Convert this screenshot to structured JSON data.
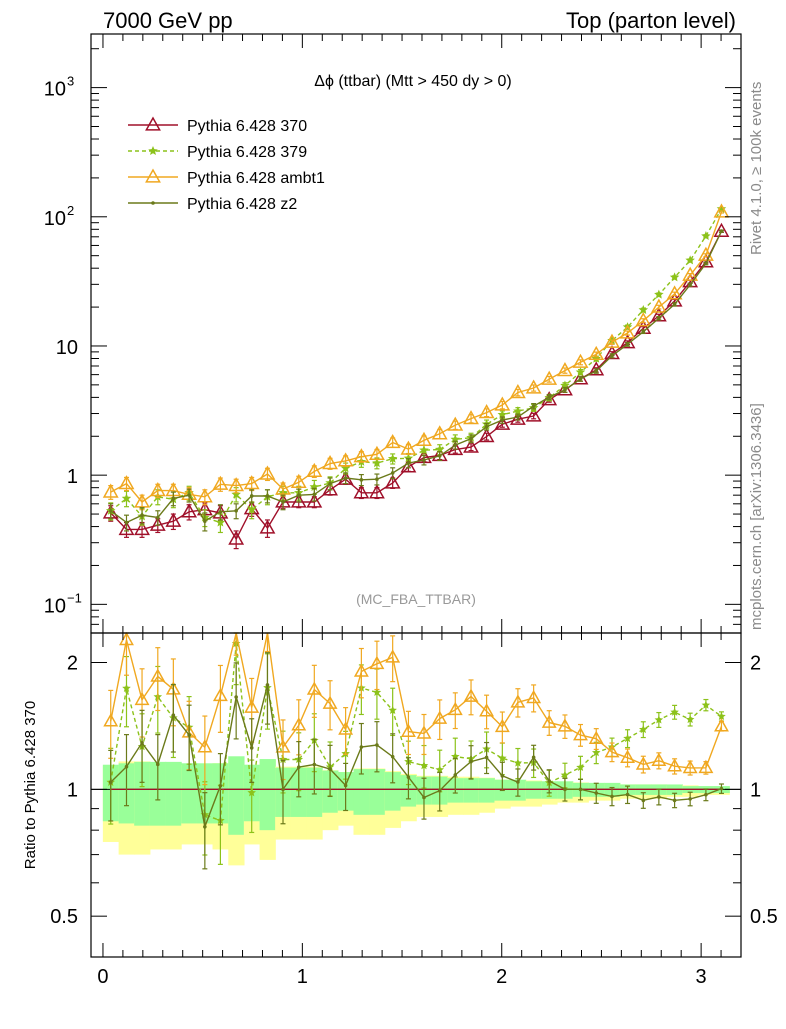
{
  "header": {
    "left_title": "7000 GeV pp",
    "right_title": "Top (parton level)"
  },
  "side_labels": {
    "rivet": "Rivet 4.1.0, ≥ 100k events",
    "mcplots": "mcplots.cern.ch [arXiv:1306.3436]"
  },
  "chart_data": {
    "type": "line",
    "title": "Δϕ (ttbar) (Mtt > 450 dy > 0)",
    "watermark": "(MC_FBA_TTBAR)",
    "xlabel": "",
    "ylabel_main": "",
    "ylabel_ratio": "Ratio to Pythia 6.428 370",
    "xlim": [
      -0.06,
      3.2
    ],
    "ylim_main": [
      0.06,
      2600
    ],
    "yscale_main": "log",
    "ylim_ratio": [
      0.4,
      2.35
    ],
    "yscale_ratio": "log",
    "x_ticks": [
      {
        "v": 0,
        "label": "0"
      },
      {
        "v": 1,
        "label": "1"
      },
      {
        "v": 2,
        "label": "2"
      },
      {
        "v": 3,
        "label": "3"
      }
    ],
    "y_ticks_main": [
      {
        "v": 0.1,
        "base": "10",
        "exp": "−1"
      },
      {
        "v": 1,
        "base": "1",
        "exp": ""
      },
      {
        "v": 10,
        "base": "10",
        "exp": ""
      },
      {
        "v": 100,
        "base": "10",
        "exp": "2"
      },
      {
        "v": 1000,
        "base": "10",
        "exp": "3"
      }
    ],
    "y_ticks_ratio": [
      {
        "v": 0.5,
        "label": "0.5"
      },
      {
        "v": 1,
        "label": "1"
      },
      {
        "v": 2,
        "label": "2"
      }
    ],
    "legend_position": "top-left",
    "x": [
      0.039,
      0.118,
      0.196,
      0.275,
      0.353,
      0.432,
      0.511,
      0.589,
      0.668,
      0.746,
      0.825,
      0.903,
      0.982,
      1.06,
      1.139,
      1.217,
      1.296,
      1.374,
      1.453,
      1.532,
      1.61,
      1.689,
      1.767,
      1.846,
      1.924,
      2.003,
      2.081,
      2.16,
      2.238,
      2.317,
      2.395,
      2.474,
      2.553,
      2.631,
      2.71,
      2.788,
      2.867,
      2.945,
      3.024,
      3.102
    ],
    "series": [
      {
        "name": "Pythia 6.428 370",
        "color": "#a0102a",
        "marker": "triangle-open",
        "dash": "solid",
        "values": [
          0.51,
          0.38,
          0.38,
          0.41,
          0.44,
          0.52,
          0.54,
          0.51,
          0.32,
          0.55,
          0.39,
          0.62,
          0.62,
          0.62,
          0.77,
          0.93,
          0.73,
          0.73,
          0.87,
          1.16,
          1.37,
          1.42,
          1.58,
          1.65,
          1.99,
          2.48,
          2.71,
          2.87,
          3.84,
          4.57,
          5.56,
          6.53,
          8.73,
          10.6,
          13.7,
          17.1,
          22.3,
          31.4,
          44.8,
          77.2
        ],
        "errors": [
          0.07,
          0.05,
          0.05,
          0.05,
          0.06,
          0.07,
          0.07,
          0.07,
          0.05,
          0.07,
          0.06,
          0.07,
          0.06,
          0.06,
          0.07,
          0.08,
          0.07,
          0.07,
          0.08,
          0.09,
          0.1,
          0.1,
          0.1,
          0.1,
          0.12,
          0.13,
          0.14,
          0.14,
          0.17,
          0.2,
          0.22,
          0.25,
          0.3,
          0.35,
          0.4,
          0.5,
          0.6,
          0.8,
          1.0,
          1.4
        ]
      },
      {
        "name": "Pythia 6.428 379",
        "color": "#8cc21a",
        "marker": "star",
        "dash": "dashed",
        "values": [
          0.53,
          0.66,
          0.48,
          0.68,
          0.65,
          0.73,
          0.47,
          0.43,
          0.71,
          0.54,
          0.68,
          0.73,
          0.73,
          0.81,
          0.87,
          1.13,
          1.27,
          1.24,
          1.34,
          1.35,
          1.56,
          1.58,
          1.89,
          1.95,
          2.48,
          2.94,
          3.13,
          3.32,
          3.98,
          4.94,
          6.27,
          7.98,
          11.0,
          14.0,
          19.0,
          25.0,
          34.0,
          46.0,
          71.0,
          115.0
        ],
        "errors": [
          0.08,
          0.09,
          0.07,
          0.09,
          0.09,
          0.09,
          0.07,
          0.07,
          0.09,
          0.08,
          0.09,
          0.09,
          0.09,
          0.1,
          0.1,
          0.11,
          0.12,
          0.12,
          0.12,
          0.12,
          0.14,
          0.14,
          0.16,
          0.16,
          0.19,
          0.2,
          0.2,
          0.2,
          0.22,
          0.25,
          0.3,
          0.35,
          0.4,
          0.5,
          0.6,
          0.7,
          0.9,
          1.1,
          1.5,
          2.0
        ]
      },
      {
        "name": "Pythia 6.428 ambt1",
        "color": "#f0a820",
        "marker": "triangle-open",
        "dash": "solid",
        "values": [
          0.74,
          0.86,
          0.62,
          0.76,
          0.76,
          0.71,
          0.68,
          0.85,
          0.83,
          0.86,
          1.02,
          0.78,
          0.88,
          1.07,
          1.23,
          1.29,
          1.39,
          1.45,
          1.79,
          1.59,
          1.86,
          2.09,
          2.44,
          2.74,
          3.05,
          3.49,
          4.36,
          4.73,
          5.53,
          6.45,
          7.48,
          8.61,
          10.7,
          12.6,
          15.7,
          20.0,
          25.3,
          35.3,
          50.4,
          109.0
        ],
        "errors": [
          0.09,
          0.1,
          0.08,
          0.09,
          0.09,
          0.09,
          0.09,
          0.1,
          0.1,
          0.1,
          0.11,
          0.09,
          0.1,
          0.11,
          0.12,
          0.12,
          0.13,
          0.13,
          0.15,
          0.14,
          0.15,
          0.17,
          0.18,
          0.2,
          0.21,
          0.23,
          0.25,
          0.26,
          0.28,
          0.3,
          0.33,
          0.36,
          0.4,
          0.45,
          0.55,
          0.65,
          0.8,
          1.0,
          1.3,
          2.0
        ]
      },
      {
        "name": "Pythia 6.428 z2",
        "color": "#6b7a1a",
        "marker": "dot",
        "dash": "solid",
        "values": [
          0.53,
          0.43,
          0.49,
          0.47,
          0.66,
          0.7,
          0.44,
          0.52,
          0.53,
          0.69,
          0.69,
          0.62,
          0.7,
          0.71,
          0.86,
          0.95,
          0.92,
          0.93,
          1.04,
          1.24,
          1.31,
          1.41,
          1.71,
          1.92,
          2.37,
          2.67,
          2.82,
          3.42,
          4.02,
          4.57,
          5.56,
          6.4,
          8.4,
          10.3,
          12.9,
          16.4,
          21.0,
          29.8,
          43.5,
          77.5
        ],
        "errors": [
          0.07,
          0.06,
          0.07,
          0.06,
          0.08,
          0.08,
          0.07,
          0.07,
          0.07,
          0.08,
          0.08,
          0.08,
          0.08,
          0.08,
          0.09,
          0.09,
          0.09,
          0.09,
          0.1,
          0.1,
          0.11,
          0.11,
          0.12,
          0.13,
          0.14,
          0.15,
          0.15,
          0.16,
          0.18,
          0.2,
          0.22,
          0.25,
          0.3,
          0.35,
          0.4,
          0.5,
          0.6,
          0.8,
          1.0,
          1.4
        ]
      }
    ],
    "ratio_band_1sigma": [
      0.84,
      0.83,
      0.82,
      0.82,
      0.82,
      0.83,
      0.83,
      0.83,
      0.78,
      0.84,
      0.8,
      0.86,
      0.86,
      0.86,
      0.88,
      0.89,
      0.87,
      0.87,
      0.89,
      0.91,
      0.92,
      0.92,
      0.93,
      0.93,
      0.93,
      0.94,
      0.94,
      0.95,
      0.95,
      0.95,
      0.96,
      0.96,
      0.96,
      0.97,
      0.97,
      0.97,
      0.97,
      0.98,
      0.98,
      0.98
    ],
    "ratio_band_2sigma": [
      0.75,
      0.7,
      0.7,
      0.72,
      0.72,
      0.74,
      0.74,
      0.72,
      0.66,
      0.74,
      0.68,
      0.76,
      0.76,
      0.76,
      0.8,
      0.82,
      0.78,
      0.78,
      0.81,
      0.84,
      0.86,
      0.86,
      0.87,
      0.87,
      0.88,
      0.9,
      0.91,
      0.91,
      0.92,
      0.93,
      0.93,
      0.94,
      0.94,
      0.95,
      0.95,
      0.95,
      0.96,
      0.96,
      0.97,
      0.97
    ]
  }
}
